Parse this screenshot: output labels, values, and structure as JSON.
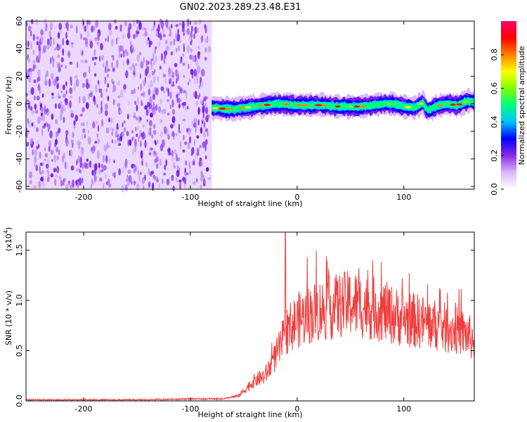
{
  "title": "GN02.2023.289.23.48.E31",
  "chart_data": [
    {
      "type": "heatmap",
      "xlabel": "Height of straight line (km)",
      "ylabel": "Frequency (Hz)",
      "xlim": [
        -254,
        166
      ],
      "ylim": [
        -62,
        60
      ],
      "xticks": [
        -200,
        -100,
        0,
        100
      ],
      "yticks": [
        60,
        40,
        20,
        0,
        -20,
        -40,
        -60
      ],
      "colorbar": {
        "label": "Normalized spectral amplitude",
        "range": [
          0.0,
          1.0
        ],
        "ticks": [
          "0.0",
          "0.2",
          "0.4",
          "0.6",
          "0.8"
        ],
        "colors": [
          "#ffffff",
          "#d9b8ff",
          "#8a2be2",
          "#0000ff",
          "#00bfff",
          "#00ff7f",
          "#7fff00",
          "#ffff00",
          "#ff7f00",
          "#ff0000",
          "#ff0066"
        ]
      },
      "noise_region_x": [
        -254,
        -80
      ],
      "ridge": {
        "x": [
          -80,
          -60,
          -40,
          -20,
          0,
          20,
          40,
          60,
          80,
          90,
          100,
          110,
          118,
          122,
          130,
          140,
          150,
          160,
          166
        ],
        "y": [
          -3,
          -4,
          -2,
          0,
          -1,
          -1,
          -2,
          -2,
          0,
          0,
          -2,
          -3,
          1,
          -5,
          -2,
          0,
          -1,
          2,
          1
        ]
      }
    },
    {
      "type": "line",
      "xlabel": "Height of straight line (km)",
      "ylabel": "SNR (10 * v/v)",
      "multiplier_label": "(x10",
      "multiplier_exp": "4",
      "xlim": [
        -254,
        166
      ],
      "ylim": [
        0,
        1.68
      ],
      "xticks": [
        -200,
        -100,
        0,
        100
      ],
      "yticks": [
        "0.0",
        "0.5",
        "1.0",
        "1.5"
      ],
      "color": "#f03c3c",
      "series": [
        {
          "x": [
            -254,
            -200,
            -150,
            -100,
            -70,
            -55,
            -45,
            -40,
            -30,
            -25,
            -20,
            -15,
            -12,
            -10,
            -5,
            0,
            10,
            20,
            30,
            40,
            50,
            60,
            70,
            80,
            90,
            100,
            110,
            120,
            130,
            140,
            150,
            160,
            166
          ],
          "y": [
            0.01,
            0.01,
            0.01,
            0.02,
            0.02,
            0.05,
            0.15,
            0.2,
            0.25,
            0.35,
            0.45,
            0.55,
            0.65,
            0.7,
            0.75,
            0.8,
            0.85,
            0.9,
            0.92,
            0.95,
            0.97,
            0.95,
            0.92,
            0.9,
            0.85,
            0.82,
            0.8,
            0.78,
            0.75,
            0.72,
            0.7,
            0.65,
            0.6
          ]
        }
      ]
    }
  ]
}
